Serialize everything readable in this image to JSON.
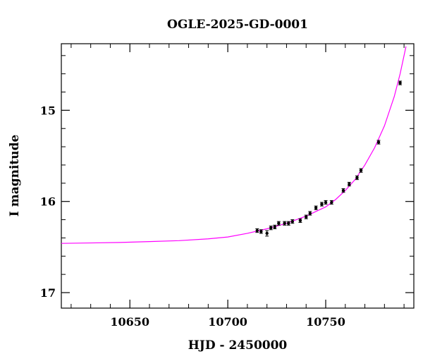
{
  "chart_data": {
    "type": "scatter",
    "title": "OGLE-2025-GD-0001",
    "xlabel": "HJD - 2450000",
    "ylabel": "I magnitude",
    "xlim": [
      10615,
      10795
    ],
    "ylim": [
      17.17,
      14.27
    ],
    "y_inverted": true,
    "grid": false,
    "x_major_ticks": [
      10650,
      10700,
      10750
    ],
    "x_tick_labels": [
      "10650",
      "10700",
      "10750"
    ],
    "x_minor_step": 10,
    "y_major_ticks": [
      15,
      16,
      17
    ],
    "y_tick_labels": [
      "15",
      "16",
      "17"
    ],
    "y_minor_step": 0.2,
    "model_color": "#ff00ff",
    "point_color": "#000000",
    "series": [
      {
        "kind": "points",
        "x": [
          10715.0,
          10717.0,
          10720.0,
          10722.0,
          10724.0,
          10726.0,
          10729.0,
          10731.0,
          10733.0,
          10737.0,
          10740.0,
          10742.0,
          10745.0,
          10748.0,
          10750.0,
          10753.0,
          10759.0,
          10762.0,
          10766.0,
          10768.0,
          10777.0,
          10788.0
        ],
        "y": [
          16.32,
          16.33,
          16.35,
          16.29,
          16.28,
          16.24,
          16.24,
          16.24,
          16.22,
          16.21,
          16.17,
          16.13,
          16.07,
          16.03,
          16.01,
          16.01,
          15.88,
          15.81,
          15.74,
          15.66,
          15.35,
          14.7
        ],
        "yerr": [
          0.02,
          0.02,
          0.03,
          0.02,
          0.02,
          0.02,
          0.02,
          0.02,
          0.02,
          0.02,
          0.02,
          0.02,
          0.02,
          0.02,
          0.02,
          0.02,
          0.02,
          0.02,
          0.02,
          0.02,
          0.02,
          0.02
        ]
      },
      {
        "kind": "model",
        "x": [
          10615,
          10630,
          10645,
          10660,
          10675,
          10690,
          10700,
          10710,
          10720,
          10730,
          10740,
          10750,
          10755,
          10760,
          10765,
          10770,
          10775,
          10780,
          10785,
          10788,
          10791
        ],
        "y": [
          16.46,
          16.455,
          16.45,
          16.44,
          16.43,
          16.41,
          16.39,
          16.35,
          16.3,
          16.24,
          16.16,
          16.06,
          15.98,
          15.88,
          15.76,
          15.6,
          15.41,
          15.17,
          14.85,
          14.6,
          14.3
        ]
      }
    ]
  }
}
